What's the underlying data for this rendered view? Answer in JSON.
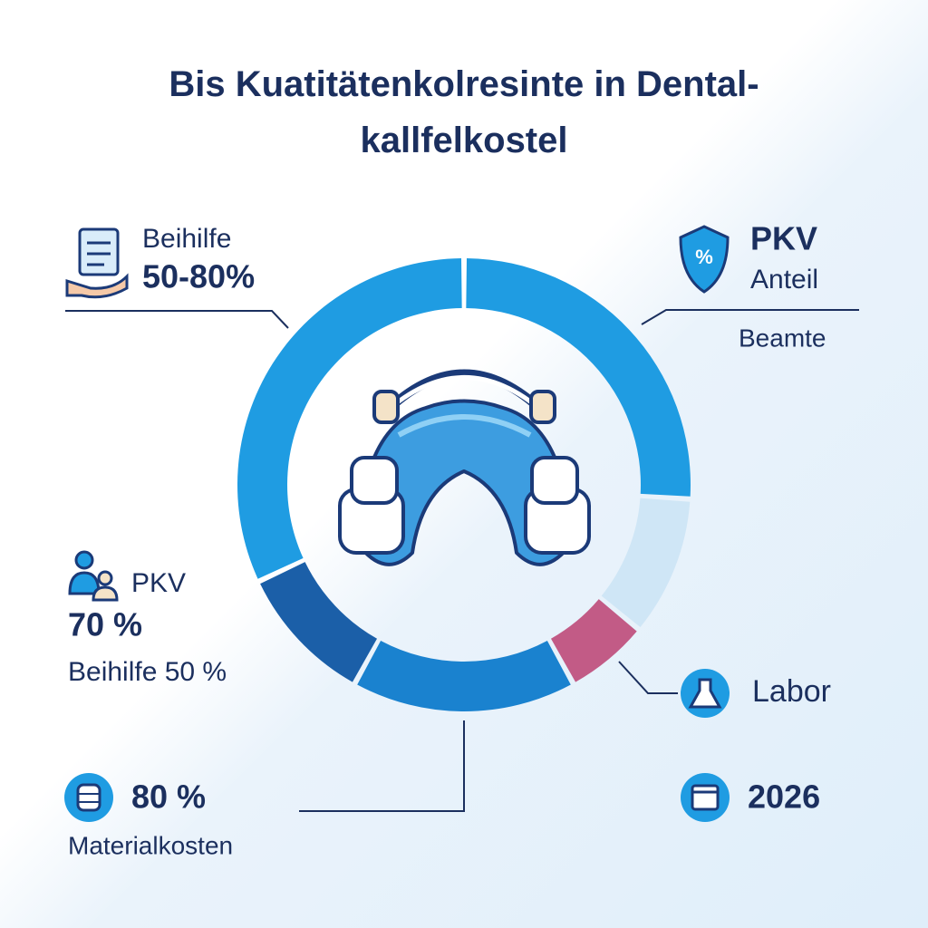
{
  "chart_data": {
    "type": "donut",
    "title": "Bis Kuatitätenkolresinte in Dental-kallfelkostel",
    "values": [
      26,
      10,
      6,
      16,
      10,
      32
    ],
    "colors": [
      "#1f9ce2",
      "#cfe6f6",
      "#c25b86",
      "#1a82cf",
      "#1b5fa8",
      "#1f9ce2"
    ],
    "annotations": [
      {
        "lines": [
          "Beihilfe",
          "50-80%"
        ]
      },
      {
        "lines": [
          "PKV",
          "Anteil",
          "Beamte"
        ]
      },
      {
        "lines": [
          "PKV",
          "70 %",
          "Beihilfe 50 %"
        ]
      },
      {
        "lines": [
          "Labor"
        ]
      },
      {
        "lines": [
          "80 %",
          "Materialkosten"
        ]
      },
      {
        "lines": [
          "2026"
        ]
      }
    ]
  }
}
